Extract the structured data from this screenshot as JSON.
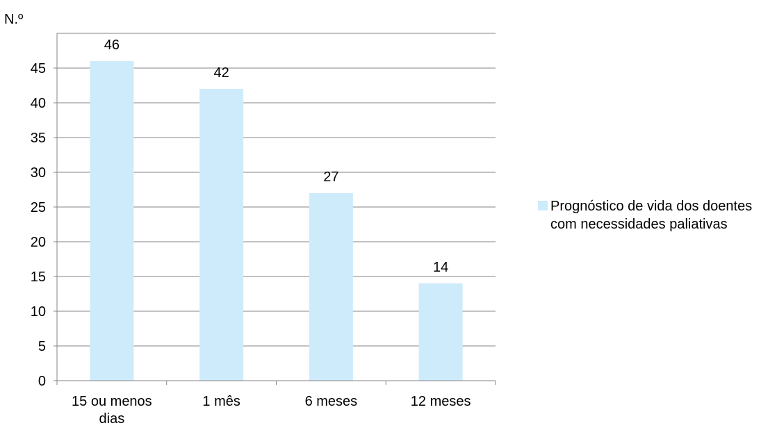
{
  "chart_data": {
    "type": "bar",
    "categories": [
      [
        "15 ou menos",
        "dias"
      ],
      [
        "1 mês"
      ],
      [
        "6 meses"
      ],
      [
        "12 meses"
      ]
    ],
    "series": [
      {
        "name": "Prognóstico de vida dos doentes com necessidades paliativas",
        "values": [
          46,
          42,
          27,
          14
        ],
        "color": "#CDEBFB"
      }
    ],
    "data_labels": [
      "46",
      "42",
      "27",
      "14"
    ],
    "y_tick_labels": [
      "0",
      "5",
      "10",
      "15",
      "20",
      "25",
      "30",
      "35",
      "40",
      "45"
    ],
    "ylabel": "N.º",
    "xlabel": "",
    "ylim": [
      0,
      50
    ],
    "ytick_step": 5,
    "grid": true,
    "legend_position": "right",
    "colors": {
      "grid": "#868686",
      "axis": "#868686",
      "bar": "#CDEBFB"
    }
  }
}
